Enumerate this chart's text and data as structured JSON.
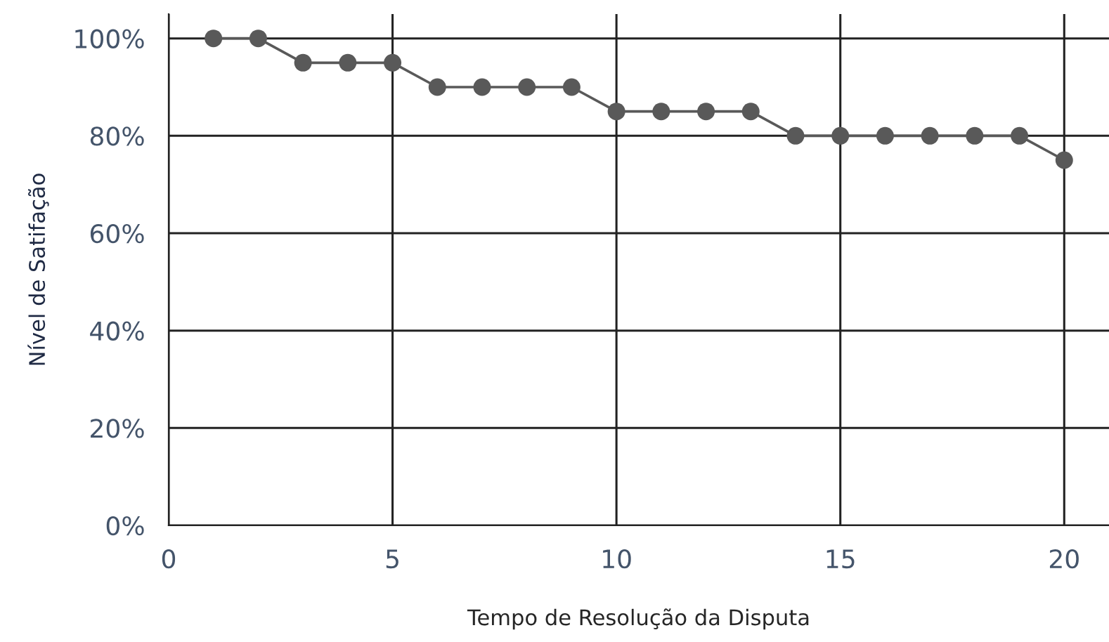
{
  "chart_data": {
    "type": "line",
    "xlabel": "Tempo de Resolução da Disputa",
    "ylabel": "Nível de Satifação",
    "x": [
      1,
      2,
      3,
      4,
      5,
      6,
      7,
      8,
      9,
      10,
      11,
      12,
      13,
      14,
      15,
      16,
      17,
      18,
      19,
      20
    ],
    "series": [
      {
        "color": "#595959",
        "values": [
          100,
          100,
          95,
          95,
          95,
          90,
          90,
          90,
          90,
          85,
          85,
          85,
          85,
          80,
          80,
          80,
          80,
          80,
          80,
          75
        ]
      }
    ],
    "xlim": [
      0,
      21
    ],
    "xticks": [
      0,
      5,
      10,
      15,
      20
    ],
    "ylim": [
      0,
      105
    ],
    "yticks": [
      {
        "value": 0,
        "label": "0%"
      },
      {
        "value": 20,
        "label": "20%"
      },
      {
        "value": 40,
        "label": "40%"
      },
      {
        "value": 60,
        "label": "60%"
      },
      {
        "value": 80,
        "label": "80%"
      },
      {
        "value": 100,
        "label": "100%"
      }
    ],
    "grid": true,
    "marker": "circle",
    "line_style": "solid"
  }
}
